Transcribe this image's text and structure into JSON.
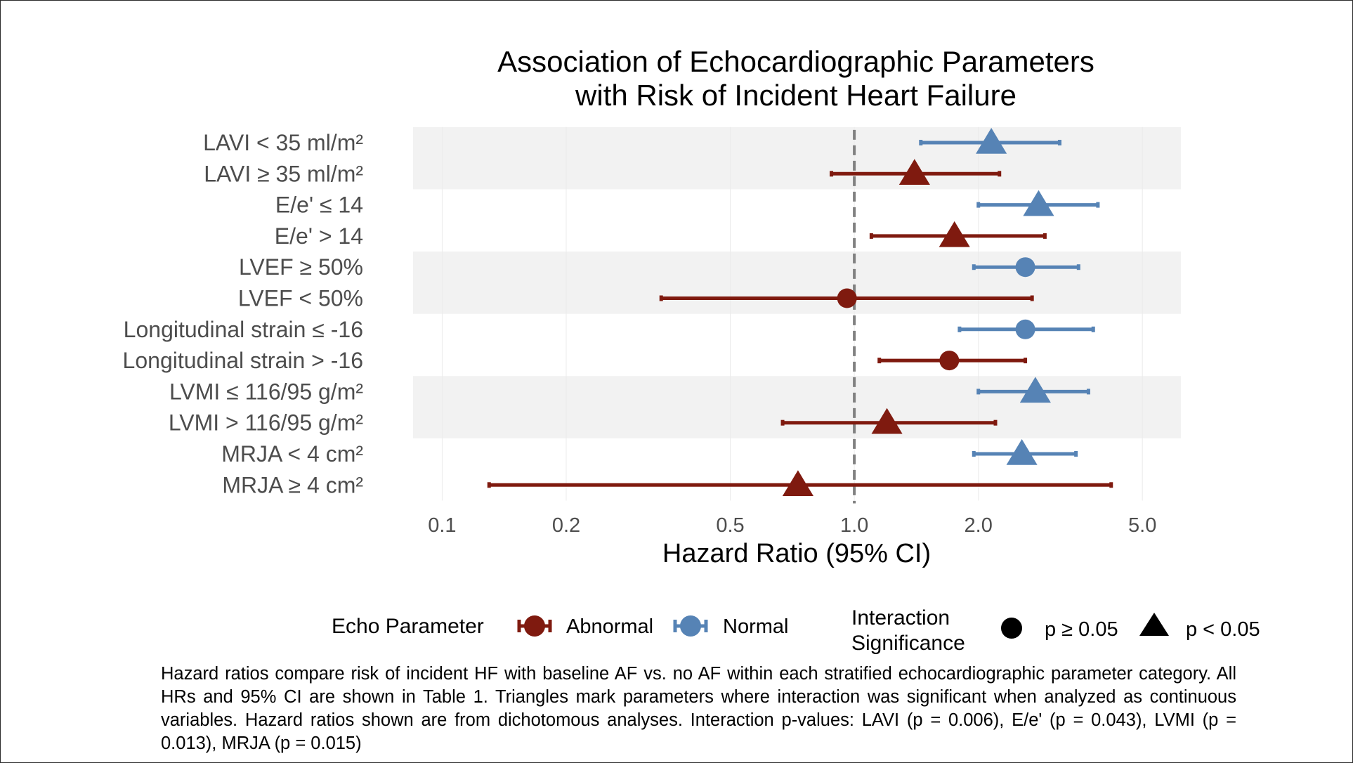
{
  "chart_data": {
    "type": "forest",
    "title_lines": [
      "Association of Echocardiographic Parameters",
      "with Risk of Incident Heart Failure"
    ],
    "xlabel": "Hazard Ratio (95% CI)",
    "x_scale": "log",
    "xlim": [
      0.085,
      6.2
    ],
    "x_ticks": [
      0.1,
      0.2,
      0.5,
      1.0,
      2.0,
      5.0
    ],
    "x_tick_labels": [
      "0.1",
      "0.2",
      "0.5",
      "1.0",
      "2.0",
      "5.0"
    ],
    "reference_line": 1.0,
    "colors": {
      "Abnormal": "#7f1a0f",
      "Normal": "#5683b5",
      "reference": "#808080",
      "band": "#f2f2f2"
    },
    "rows": [
      {
        "label": "LAVI < 35 ml/m²",
        "group": "Normal",
        "hr": 2.15,
        "lower": 1.45,
        "upper": 3.15,
        "significant": true
      },
      {
        "label": "LAVI ≥ 35 ml/m²",
        "group": "Abnormal",
        "hr": 1.4,
        "lower": 0.88,
        "upper": 2.25,
        "significant": true
      },
      {
        "label": "E/e' ≤ 14",
        "group": "Normal",
        "hr": 2.8,
        "lower": 2.0,
        "upper": 3.9,
        "significant": true
      },
      {
        "label": "E/e' > 14",
        "group": "Abnormal",
        "hr": 1.75,
        "lower": 1.1,
        "upper": 2.9,
        "significant": true
      },
      {
        "label": "LVEF ≥ 50%",
        "group": "Normal",
        "hr": 2.6,
        "lower": 1.95,
        "upper": 3.5,
        "significant": false
      },
      {
        "label": "LVEF < 50%",
        "group": "Abnormal",
        "hr": 0.96,
        "lower": 0.34,
        "upper": 2.7,
        "significant": false
      },
      {
        "label": "Longitudinal strain ≤ -16",
        "group": "Normal",
        "hr": 2.6,
        "lower": 1.8,
        "upper": 3.8,
        "significant": false
      },
      {
        "label": "Longitudinal strain > -16",
        "group": "Abnormal",
        "hr": 1.7,
        "lower": 1.15,
        "upper": 2.6,
        "significant": false
      },
      {
        "label": "LVMI ≤ 116/95 g/m²",
        "group": "Normal",
        "hr": 2.75,
        "lower": 2.0,
        "upper": 3.7,
        "significant": true
      },
      {
        "label": "LVMI > 116/95 g/m²",
        "group": "Abnormal",
        "hr": 1.2,
        "lower": 0.67,
        "upper": 2.2,
        "significant": true
      },
      {
        "label": "MRJA < 4 cm²",
        "group": "Normal",
        "hr": 2.55,
        "lower": 1.95,
        "upper": 3.45,
        "significant": true
      },
      {
        "label": "MRJA ≥ 4 cm²",
        "group": "Abnormal",
        "hr": 0.73,
        "lower": 0.13,
        "upper": 4.2,
        "significant": true
      }
    ],
    "legend": {
      "echo_title": "Echo Parameter",
      "echo_items": [
        "Abnormal",
        "Normal"
      ],
      "sig_title_lines": [
        "Interaction",
        "Significance"
      ],
      "sig_items": [
        "p ≥ 0.05",
        "p < 0.05"
      ]
    }
  },
  "caption": "Hazard ratios compare risk of incident HF with baseline AF vs. no AF within each stratified echocardiographic parameter category. All HRs and 95% CI are shown in Table 1. Triangles mark parameters where interaction was significant when analyzed as continuous variables. Hazard ratios shown are from dichotomous analyses. Interaction p-values: LAVI (p = 0.006), E/e' (p = 0.043), LVMI (p = 0.013), MRJA (p = 0.015)"
}
